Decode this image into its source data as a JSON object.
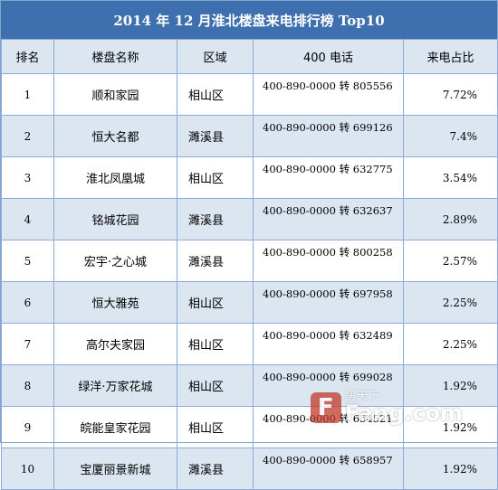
{
  "title": "2014 年 12 月淮北楼盘来电排行榜 Top10",
  "headers": [
    "排名",
    "楼盘名称",
    "区域",
    "400 电话",
    "来电占比"
  ],
  "rows": [
    {
      "rank": "1",
      "name": "顺和家园",
      "district": "相山区",
      "phone": "400-890-0000 转 805556",
      "share": "7.72%"
    },
    {
      "rank": "2",
      "name": "恒大名都",
      "district": "濉溪县",
      "phone": "400-890-0000 转 699126",
      "share": "7.4%"
    },
    {
      "rank": "3",
      "name": "淮北凤凰城",
      "district": "相山区",
      "phone": "400-890-0000 转 632775",
      "share": "3.54%"
    },
    {
      "rank": "4",
      "name": "铭城花园",
      "district": "濉溪县",
      "phone": "400-890-0000 转 632637",
      "share": "2.89%"
    },
    {
      "rank": "5",
      "name": "宏宇·之心城",
      "district": "濉溪县",
      "phone": "400-890-0000 转 800258",
      "share": "2.57%"
    },
    {
      "rank": "6",
      "name": "恒大雅苑",
      "district": "相山区",
      "phone": "400-890-0000 转 697958",
      "share": "2.25%"
    },
    {
      "rank": "7",
      "name": "高尔夫家园",
      "district": "相山区",
      "phone": "400-890-0000 转 632489",
      "share": "2.25%"
    },
    {
      "rank": "8",
      "name": "绿洋·万家花城",
      "district": "相山区",
      "phone": "400-890-0000 转 699028",
      "share": "1.92%"
    },
    {
      "rank": "9",
      "name": "皖能皇家花园",
      "district": "相山区",
      "phone": "400-890-0000 转 654521",
      "share": "1.92%"
    },
    {
      "rank": "10",
      "name": "宝厦丽景新城",
      "district": "濉溪县",
      "phone": "400-890-0000 转 658957",
      "share": "1.92%"
    }
  ],
  "watermark": {
    "logo": "F",
    "cn": "房天下",
    "en": "Fang.com"
  },
  "colors": {
    "title_bg": "#3e6fae",
    "header_bg": "#dce6f1",
    "alt_row_bg": "#dce6f1",
    "border": "#8eaadb"
  }
}
